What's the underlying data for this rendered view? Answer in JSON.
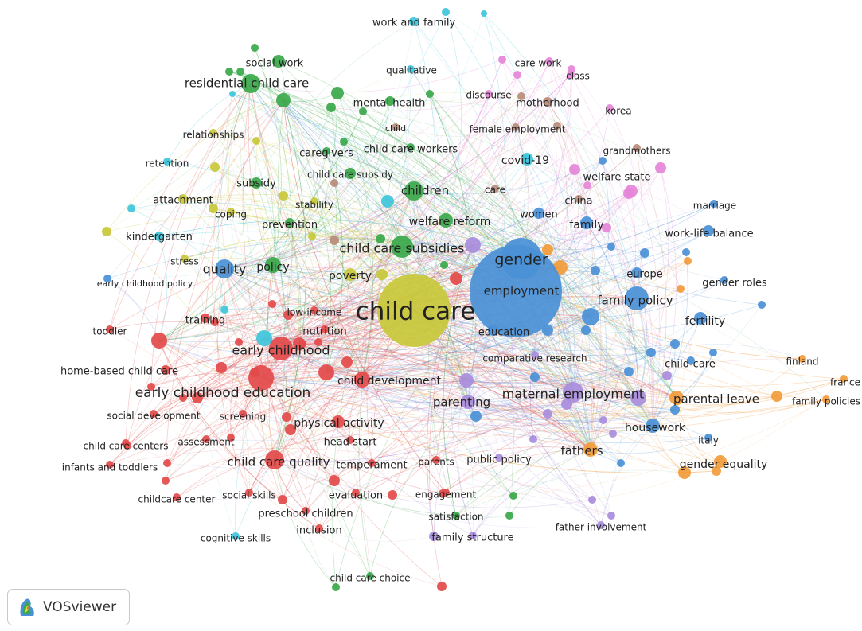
{
  "app": {
    "name": "VOSviewer"
  },
  "clusters": {
    "red": "#e34a4a",
    "green": "#3aa84a",
    "blue": "#4a90d6",
    "yellow": "#c8c83a",
    "purple": "#a98ddc",
    "cyan": "#3fc6dc",
    "orange": "#f29b3a",
    "brown": "#b98b7a",
    "pink": "#e585d8"
  },
  "nodes": [
    {
      "id": "child_care",
      "label": "child care",
      "cluster": "yellow",
      "size": 5
    },
    {
      "id": "employment",
      "label": "employment",
      "cluster": "blue",
      "size": 5
    },
    {
      "id": "gender",
      "label": "gender",
      "cluster": "blue",
      "size": 4
    },
    {
      "id": "child_care_subsidies",
      "label": "child care subsidies",
      "cluster": "green",
      "size": 3
    },
    {
      "id": "early_childhood_education",
      "label": "early childhood education",
      "cluster": "red",
      "size": 3
    },
    {
      "id": "early_childhood",
      "label": "early childhood",
      "cluster": "red",
      "size": 3
    },
    {
      "id": "maternal_employment",
      "label": "maternal employment",
      "cluster": "purple",
      "size": 3
    },
    {
      "id": "family_policy",
      "label": "family policy",
      "cluster": "blue",
      "size": 3
    },
    {
      "id": "child_care_quality",
      "label": "child care quality",
      "cluster": "red",
      "size": 3
    },
    {
      "id": "residential_child_care",
      "label": "residential child care",
      "cluster": "green",
      "size": 3
    },
    {
      "id": "children",
      "label": "children",
      "cluster": "green",
      "size": 3
    },
    {
      "id": "quality",
      "label": "quality",
      "cluster": "blue",
      "size": 3
    },
    {
      "id": "policy",
      "label": "policy",
      "cluster": "green",
      "size": 2
    },
    {
      "id": "welfare_reform",
      "label": "welfare reform",
      "cluster": "green",
      "size": 2
    },
    {
      "id": "child_development",
      "label": "child development",
      "cluster": "red",
      "size": 2
    },
    {
      "id": "parenting",
      "label": "parenting",
      "cluster": "purple",
      "size": 2
    },
    {
      "id": "parental_leave",
      "label": "parental leave",
      "cluster": "orange",
      "size": 2
    },
    {
      "id": "fathers",
      "label": "fathers",
      "cluster": "orange",
      "size": 2
    },
    {
      "id": "gender_equality",
      "label": "gender equality",
      "cluster": "orange",
      "size": 2
    },
    {
      "id": "housework",
      "label": "housework",
      "cluster": "blue",
      "size": 2
    },
    {
      "id": "fertility",
      "label": "fertility",
      "cluster": "blue",
      "size": 2
    },
    {
      "id": "poverty",
      "label": "poverty",
      "cluster": "yellow",
      "size": 2
    },
    {
      "id": "covid19",
      "label": "covid-19",
      "cluster": "cyan",
      "size": 2
    },
    {
      "id": "physical_activity",
      "label": "physical activity",
      "cluster": "red",
      "size": 2
    },
    {
      "id": "home_based_child_care",
      "label": "home-based child care",
      "cluster": "red",
      "size": 2
    },
    {
      "id": "work_life_balance",
      "label": "work-life balance",
      "cluster": "blue",
      "size": 2
    },
    {
      "id": "family",
      "label": "family",
      "cluster": "blue",
      "size": 2
    },
    {
      "id": "women",
      "label": "women",
      "cluster": "blue",
      "size": 2
    },
    {
      "id": "europe",
      "label": "europe",
      "cluster": "blue",
      "size": 2
    },
    {
      "id": "education",
      "label": "education",
      "cluster": "blue",
      "size": 2
    },
    {
      "id": "welfare_state",
      "label": "welfare state",
      "cluster": "pink",
      "size": 2
    },
    {
      "id": "motherhood",
      "label": "motherhood",
      "cluster": "brown",
      "size": 2
    },
    {
      "id": "social_work",
      "label": "social work",
      "cluster": "green",
      "size": 2
    },
    {
      "id": "mental_health",
      "label": "mental health",
      "cluster": "green",
      "size": 2
    },
    {
      "id": "child_care_subsidy",
      "label": "child care subsidy",
      "cluster": "green",
      "size": 2
    },
    {
      "id": "subsidy",
      "label": "subsidy",
      "cluster": "green",
      "size": 2
    },
    {
      "id": "prevention",
      "label": "prevention",
      "cluster": "green",
      "size": 2
    },
    {
      "id": "kindergarten",
      "label": "kindergarten",
      "cluster": "cyan",
      "size": 2
    },
    {
      "id": "attachment",
      "label": "attachment",
      "cluster": "yellow",
      "size": 2
    },
    {
      "id": "work_and_family",
      "label": "work and family",
      "cluster": "cyan",
      "size": 2
    },
    {
      "id": "care_work",
      "label": "care work",
      "cluster": "pink",
      "size": 1
    },
    {
      "id": "class",
      "label": "class",
      "cluster": "pink",
      "size": 1
    },
    {
      "id": "qualitative",
      "label": "qualitative",
      "cluster": "cyan",
      "size": 1
    },
    {
      "id": "discourse",
      "label": "discourse",
      "cluster": "pink",
      "size": 1
    },
    {
      "id": "korea",
      "label": "korea",
      "cluster": "pink",
      "size": 1
    },
    {
      "id": "child",
      "label": "child",
      "cluster": "brown",
      "size": 1
    },
    {
      "id": "female_employment",
      "label": "female employment",
      "cluster": "brown",
      "size": 1
    },
    {
      "id": "relationships",
      "label": "relationships",
      "cluster": "yellow",
      "size": 1
    },
    {
      "id": "child_care_workers",
      "label": "child care workers",
      "cluster": "green",
      "size": 1
    },
    {
      "id": "grandmothers",
      "label": "grandmothers",
      "cluster": "brown",
      "size": 1
    },
    {
      "id": "caregivers",
      "label": "caregivers",
      "cluster": "green",
      "size": 1
    },
    {
      "id": "retention",
      "label": "retention",
      "cluster": "cyan",
      "size": 1
    },
    {
      "id": "care",
      "label": "care",
      "cluster": "brown",
      "size": 1
    },
    {
      "id": "china",
      "label": "china",
      "cluster": "brown",
      "size": 1
    },
    {
      "id": "stability",
      "label": "stability",
      "cluster": "yellow",
      "size": 1
    },
    {
      "id": "marriage",
      "label": "marriage",
      "cluster": "blue",
      "size": 1
    },
    {
      "id": "coping",
      "label": "coping",
      "cluster": "yellow",
      "size": 1
    },
    {
      "id": "stress",
      "label": "stress",
      "cluster": "yellow",
      "size": 1
    },
    {
      "id": "early_childhood_policy",
      "label": "early childhood policy",
      "cluster": "blue",
      "size": 1
    },
    {
      "id": "gender_roles",
      "label": "gender roles",
      "cluster": "blue",
      "size": 1
    },
    {
      "id": "low_income",
      "label": "low-income",
      "cluster": "red",
      "size": 1
    },
    {
      "id": "toddler",
      "label": "toddler",
      "cluster": "red",
      "size": 1
    },
    {
      "id": "training",
      "label": "training",
      "cluster": "red",
      "size": 2
    },
    {
      "id": "nutrition",
      "label": "nutrition",
      "cluster": "red",
      "size": 1
    },
    {
      "id": "comparative_research",
      "label": "comparative research",
      "cluster": "purple",
      "size": 1
    },
    {
      "id": "child_care2",
      "label": "child-care",
      "cluster": "blue",
      "size": 1
    },
    {
      "id": "finland",
      "label": "finland",
      "cluster": "orange",
      "size": 1
    },
    {
      "id": "france",
      "label": "france",
      "cluster": "orange",
      "size": 1
    },
    {
      "id": "family_policies",
      "label": "family policies",
      "cluster": "orange",
      "size": 1
    },
    {
      "id": "social_development",
      "label": "social development",
      "cluster": "red",
      "size": 1
    },
    {
      "id": "screening",
      "label": "screening",
      "cluster": "red",
      "size": 1
    },
    {
      "id": "child_care_centers",
      "label": "child care centers",
      "cluster": "red",
      "size": 1
    },
    {
      "id": "assessment",
      "label": "assessment",
      "cluster": "red",
      "size": 1
    },
    {
      "id": "head_start",
      "label": "head start",
      "cluster": "red",
      "size": 1
    },
    {
      "id": "italy",
      "label": "italy",
      "cluster": "blue",
      "size": 1
    },
    {
      "id": "infants_and_toddlers",
      "label": "infants and toddlers",
      "cluster": "red",
      "size": 1
    },
    {
      "id": "temperament",
      "label": "temperament",
      "cluster": "red",
      "size": 1
    },
    {
      "id": "parents",
      "label": "parents",
      "cluster": "red",
      "size": 1
    },
    {
      "id": "public_policy",
      "label": "public policy",
      "cluster": "purple",
      "size": 1
    },
    {
      "id": "childcare_center",
      "label": "childcare center",
      "cluster": "red",
      "size": 1
    },
    {
      "id": "social_skills",
      "label": "social skills",
      "cluster": "red",
      "size": 1
    },
    {
      "id": "evaluation",
      "label": "evaluation",
      "cluster": "red",
      "size": 1
    },
    {
      "id": "engagement",
      "label": "engagement",
      "cluster": "red",
      "size": 1
    },
    {
      "id": "preschool_children",
      "label": "preschool children",
      "cluster": "red",
      "size": 1
    },
    {
      "id": "satisfaction",
      "label": "satisfaction",
      "cluster": "green",
      "size": 1
    },
    {
      "id": "inclusion",
      "label": "inclusion",
      "cluster": "red",
      "size": 1
    },
    {
      "id": "father_involvement",
      "label": "father involvement",
      "cluster": "purple",
      "size": 1
    },
    {
      "id": "cognitive_skills",
      "label": "cognitive skills",
      "cluster": "cyan",
      "size": 1
    },
    {
      "id": "family_structure",
      "label": "family structure",
      "cluster": "purple",
      "size": 1
    },
    {
      "id": "child_care_choice",
      "label": "child care choice",
      "cluster": "green",
      "size": 1
    }
  ]
}
